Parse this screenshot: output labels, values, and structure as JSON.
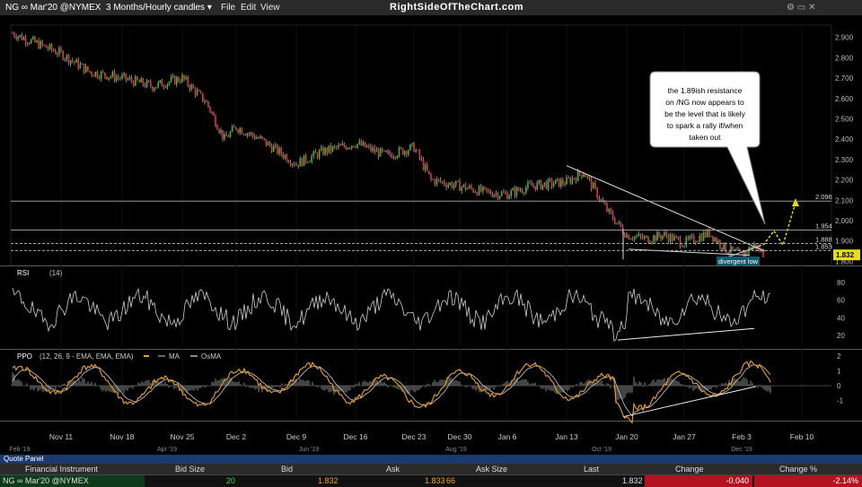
{
  "toolbar": {
    "symbol": "NG ∞ Mar'20 @NYMEX",
    "interval": "3 Months/Hourly candles ▾",
    "menus": [
      "File",
      "Edit",
      "View"
    ],
    "brand": "RightSideOfTheChart.com"
  },
  "annotation": {
    "lines": [
      "the 1.89ish resistance",
      "on /NG  now appears to",
      "be the level that is likely",
      "to spark a rally if/when",
      "taken out"
    ],
    "divergent_low": "divergent low"
  },
  "quote_panel": {
    "title": "Quote Panel",
    "columns": [
      "Financial Instrument",
      "Bid Size",
      "Bid",
      "Ask",
      "Ask Size",
      "Last",
      "Change",
      "Change %"
    ],
    "row": {
      "instrument": "NG ∞ Mar'20 @NYMEX",
      "bid_size": "20",
      "bid": "1.832",
      "ask": "1.833",
      "ask_size": "66",
      "last": "1.832",
      "change": "-0.040",
      "change_pct": "-2.14%"
    }
  },
  "colors": {
    "up_candle": "#2fbf2f",
    "down_candle": "#e8304a",
    "ppo_line": "#f0a020",
    "ma_line": "#cccccc",
    "arrow": "#e8e000",
    "last_badge": "#e8e000"
  },
  "chart_data": [
    {
      "type": "candlestick",
      "title": "NG ∞ Mar'20 @NYMEX",
      "x_ticks_top": [
        "Nov 11",
        "Nov 18",
        "Nov 25",
        "Dec 2",
        "Dec 9",
        "Dec 16",
        "Dec 23",
        "Dec 30",
        "Jan 6",
        "Jan 13",
        "Jan 20",
        "Jan 27",
        "Feb 3",
        "Feb 10"
      ],
      "x_ticks_bottom": [
        "Feb '19",
        "Apr '19",
        "Jun '19",
        "Aug '19",
        "Oct '19",
        "Dec '19"
      ],
      "y_ticks": [
        "2.900",
        "2.800",
        "2.700",
        "2.600",
        "2.500",
        "2.400",
        "2.300",
        "2.200",
        "2.100",
        "2.000",
        "1.900",
        "1.800"
      ],
      "ylim": [
        1.78,
        2.96
      ],
      "levels": [
        {
          "label": "2.096",
          "value": 2.096
        },
        {
          "label": "1.954",
          "value": 1.954
        },
        {
          "label": "1.888",
          "value": 1.888
        },
        {
          "label": "1.853",
          "value": 1.853
        }
      ],
      "last_price": "1.832",
      "path": [
        [
          "Nov 7",
          2.92
        ],
        [
          "Nov 11",
          2.82
        ],
        [
          "Nov 14",
          2.73
        ],
        [
          "Nov 18",
          2.7
        ],
        [
          "Nov 21",
          2.66
        ],
        [
          "Nov 25",
          2.7
        ],
        [
          "Nov 27",
          2.58
        ],
        [
          "Nov 29",
          2.4
        ],
        [
          "Dec 2",
          2.46
        ],
        [
          "Dec 4",
          2.4
        ],
        [
          "Dec 9",
          2.28
        ],
        [
          "Dec 12",
          2.34
        ],
        [
          "Dec 16",
          2.38
        ],
        [
          "Dec 19",
          2.32
        ],
        [
          "Dec 23",
          2.36
        ],
        [
          "Dec 26",
          2.2
        ],
        [
          "Dec 30",
          2.17
        ],
        [
          "Jan 3",
          2.14
        ],
        [
          "Jan 6",
          2.13
        ],
        [
          "Jan 9",
          2.17
        ],
        [
          "Jan 13",
          2.19
        ],
        [
          "Jan 15",
          2.24
        ],
        [
          "Jan 17",
          2.05
        ],
        [
          "Jan 20",
          1.93
        ],
        [
          "Jan 22",
          1.91
        ],
        [
          "Jan 24",
          1.93
        ],
        [
          "Jan 27",
          1.89
        ],
        [
          "Jan 29",
          1.94
        ],
        [
          "Jan 31",
          1.86
        ],
        [
          "Feb 3",
          1.83
        ],
        [
          "Feb 4",
          1.88
        ],
        [
          "Feb 5",
          1.832
        ]
      ]
    },
    {
      "type": "line",
      "title": "RSI",
      "params": "(14)",
      "y_ticks": [
        "80",
        "60",
        "40",
        "20"
      ],
      "ylim": [
        5,
        95
      ]
    },
    {
      "type": "line",
      "title": "PPO",
      "params": "(12, 26, 9 - EMA, EMA, EMA)",
      "legend": [
        "MA",
        "OsMA"
      ],
      "y_ticks": [
        "2",
        "1",
        "0",
        "-1"
      ],
      "ylim": [
        -2.3,
        2.3
      ]
    }
  ]
}
